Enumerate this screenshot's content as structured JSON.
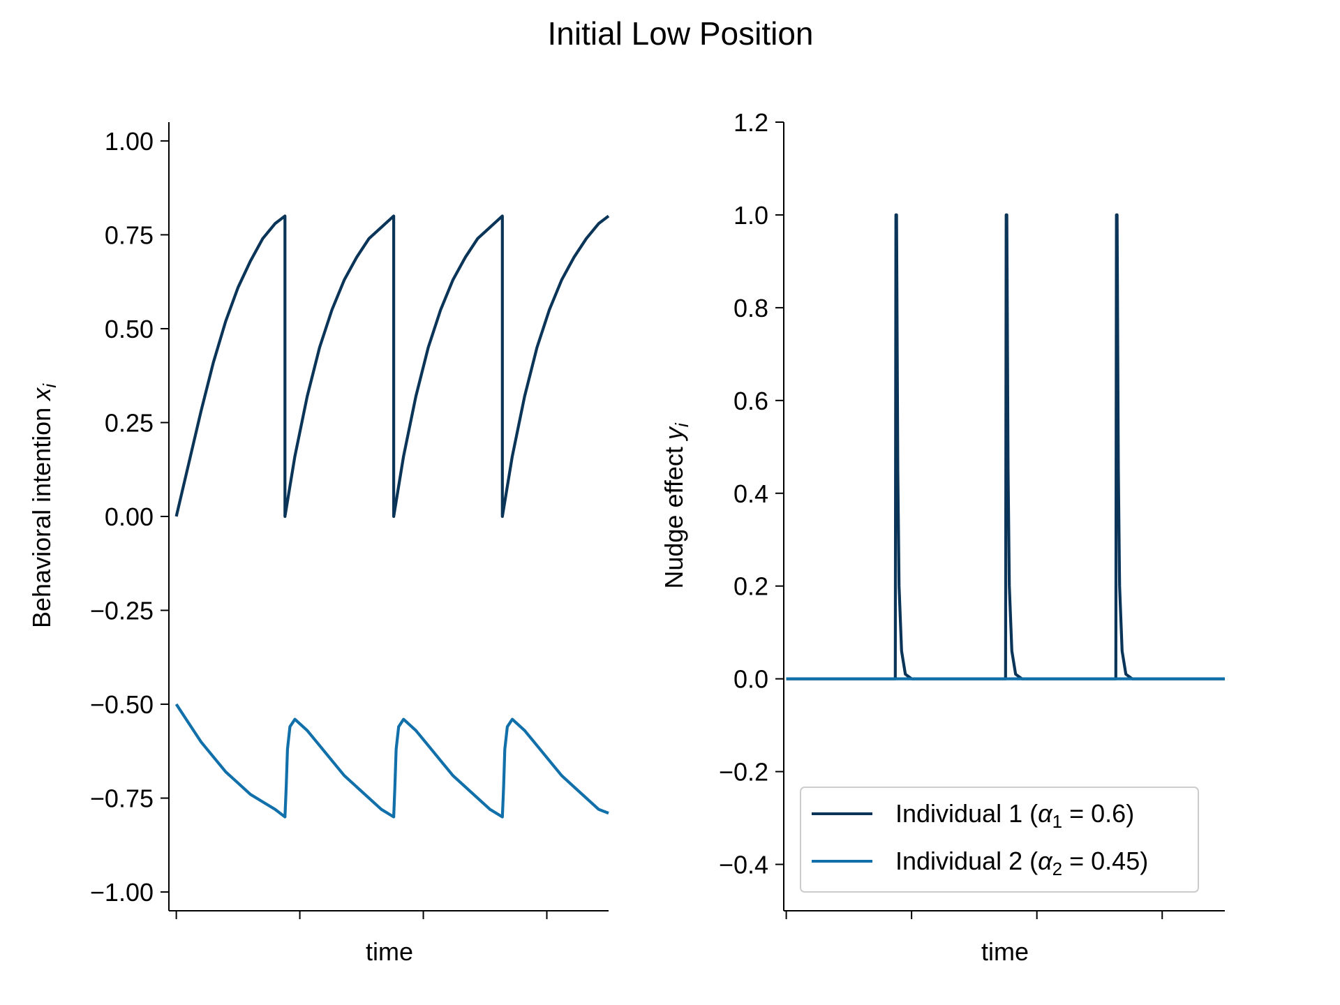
{
  "figure_title": "Initial Low Position",
  "colors": {
    "individual_1": "#0b3558",
    "individual_2": "#1170aa"
  },
  "chart_data": [
    {
      "type": "line",
      "title": "",
      "xlabel": "time",
      "ylabel": "Behavioral intention x_i",
      "ylabel_parts": {
        "text": "Behavioral intention ",
        "var": "x",
        "sub": "i"
      },
      "xlim": [
        -0.06,
        3.5
      ],
      "ylim": [
        -1.05,
        1.05
      ],
      "yticks": [
        1.0,
        0.75,
        0.5,
        0.25,
        0.0,
        -0.25,
        -0.5,
        -0.75,
        -1.0
      ],
      "ytick_labels": [
        "1.00",
        "0.75",
        "0.50",
        "0.25",
        "0.00",
        "−0.25",
        "−0.50",
        "−0.75",
        "−1.00"
      ],
      "xticks": [
        0,
        1,
        2,
        3
      ],
      "grid": false,
      "series": [
        {
          "name": "Individual 1 (α1 = 0.6)",
          "color_key": "individual_1",
          "x": [
            0.0,
            0.1,
            0.2,
            0.3,
            0.4,
            0.5,
            0.6,
            0.7,
            0.8,
            0.88,
            0.88,
            0.96,
            1.06,
            1.16,
            1.26,
            1.36,
            1.46,
            1.56,
            1.66,
            1.76,
            1.76,
            1.84,
            1.94,
            2.04,
            2.14,
            2.24,
            2.34,
            2.44,
            2.54,
            2.64,
            2.64,
            2.72,
            2.82,
            2.92,
            3.02,
            3.12,
            3.22,
            3.32,
            3.42,
            3.5
          ],
          "y": [
            0.0,
            0.14,
            0.28,
            0.41,
            0.52,
            0.61,
            0.68,
            0.74,
            0.78,
            0.8,
            0.0,
            0.16,
            0.32,
            0.45,
            0.55,
            0.63,
            0.69,
            0.74,
            0.77,
            0.8,
            0.0,
            0.16,
            0.32,
            0.45,
            0.55,
            0.63,
            0.69,
            0.74,
            0.77,
            0.8,
            0.0,
            0.16,
            0.32,
            0.45,
            0.55,
            0.63,
            0.69,
            0.74,
            0.78,
            0.8
          ]
        },
        {
          "name": "Individual 2 (α2 = 0.45)",
          "color_key": "individual_2",
          "x": [
            0.0,
            0.1,
            0.2,
            0.3,
            0.4,
            0.5,
            0.6,
            0.7,
            0.8,
            0.88,
            0.89,
            0.9,
            0.92,
            0.96,
            1.06,
            1.16,
            1.26,
            1.36,
            1.46,
            1.56,
            1.66,
            1.76,
            1.77,
            1.78,
            1.8,
            1.84,
            1.94,
            2.04,
            2.14,
            2.24,
            2.34,
            2.44,
            2.54,
            2.64,
            2.65,
            2.66,
            2.68,
            2.72,
            2.82,
            2.92,
            3.02,
            3.12,
            3.22,
            3.32,
            3.42,
            3.5
          ],
          "y": [
            -0.5,
            -0.55,
            -0.6,
            -0.64,
            -0.68,
            -0.71,
            -0.74,
            -0.76,
            -0.78,
            -0.8,
            -0.72,
            -0.62,
            -0.56,
            -0.54,
            -0.57,
            -0.61,
            -0.65,
            -0.69,
            -0.72,
            -0.75,
            -0.78,
            -0.8,
            -0.72,
            -0.62,
            -0.56,
            -0.54,
            -0.57,
            -0.61,
            -0.65,
            -0.69,
            -0.72,
            -0.75,
            -0.78,
            -0.8,
            -0.72,
            -0.62,
            -0.56,
            -0.54,
            -0.57,
            -0.61,
            -0.65,
            -0.69,
            -0.72,
            -0.75,
            -0.78,
            -0.79
          ]
        }
      ]
    },
    {
      "type": "line",
      "title": "",
      "xlabel": "time",
      "ylabel": "Nudge effect y_i",
      "ylabel_parts": {
        "text": "Nudge effect ",
        "var": "y",
        "sub": "i"
      },
      "xlim": [
        -0.02,
        3.5
      ],
      "ylim": [
        -0.5,
        1.2
      ],
      "yticks": [
        1.2,
        1.0,
        0.8,
        0.6,
        0.4,
        0.2,
        0.0,
        -0.2,
        -0.4
      ],
      "ytick_labels": [
        "1.2",
        "1.0",
        "0.8",
        "0.6",
        "0.4",
        "0.2",
        "0.0",
        "−0.2",
        "−0.4"
      ],
      "xticks": [
        0,
        1,
        2,
        3
      ],
      "grid": false,
      "legend": {
        "placement": "lower-right",
        "entries": [
          {
            "label_prefix": "Individual 1 (",
            "var": "α",
            "sub": "1",
            "label_suffix": " = 0.6)",
            "color_key": "individual_1"
          },
          {
            "label_prefix": "Individual 2 (",
            "var": "α",
            "sub": "2",
            "label_suffix": " = 0.45)",
            "color_key": "individual_2"
          }
        ]
      },
      "series": [
        {
          "name": "Individual 1 (α1 = 0.6)",
          "color_key": "individual_1",
          "x": [
            0.0,
            0.87,
            0.875,
            0.88,
            0.89,
            0.9,
            0.92,
            0.95,
            1.0,
            1.75,
            1.755,
            1.76,
            1.77,
            1.78,
            1.8,
            1.83,
            1.88,
            2.63,
            2.635,
            2.64,
            2.65,
            2.66,
            2.68,
            2.71,
            2.76,
            3.5
          ],
          "y": [
            0.0,
            0.0,
            1.0,
            1.0,
            0.45,
            0.2,
            0.06,
            0.01,
            0.0,
            0.0,
            1.0,
            1.0,
            0.45,
            0.2,
            0.06,
            0.01,
            0.0,
            0.0,
            1.0,
            1.0,
            0.45,
            0.2,
            0.06,
            0.01,
            0.0,
            0.0
          ]
        },
        {
          "name": "Individual 2 (α2 = 0.45)",
          "color_key": "individual_2",
          "x": [
            0.0,
            3.5
          ],
          "y": [
            0.0,
            0.0
          ]
        }
      ]
    }
  ]
}
